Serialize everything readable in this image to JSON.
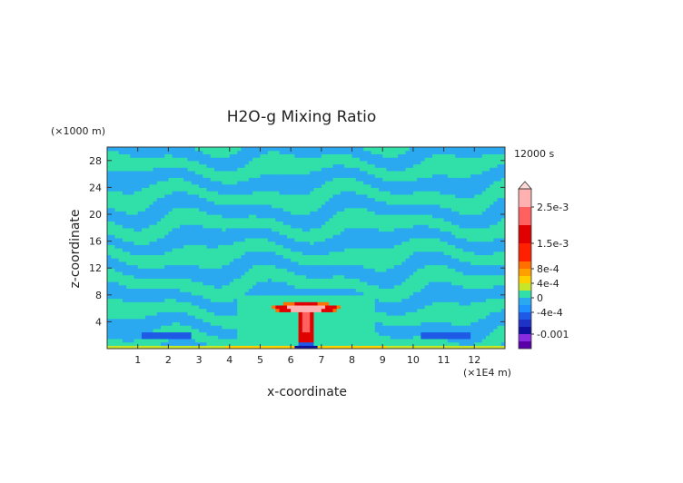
{
  "chart_data": {
    "type": "heatmap",
    "title": "H2O-g Mixing Ratio",
    "xlabel": "x-coordinate",
    "ylabel": "z-coordinate",
    "x_unit": "(×1E4 m)",
    "y_unit": "(×1000 m)",
    "time_label": "12000 s",
    "xlim": [
      0,
      13
    ],
    "ylim": [
      0,
      30
    ],
    "x_ticks": [
      1,
      2,
      3,
      4,
      5,
      6,
      7,
      8,
      9,
      10,
      11,
      12
    ],
    "y_ticks": [
      4,
      8,
      12,
      16,
      20,
      24,
      28
    ],
    "grid": false,
    "colorbar": {
      "position": "right",
      "labels": [
        "2.5e-3",
        "1.5e-3",
        "8e-4",
        "4e-4",
        "0",
        "-4e-4",
        "-0.001"
      ],
      "label_levels": [
        0.0025,
        0.0015,
        0.0008,
        0.0004,
        0.0,
        -0.0004,
        -0.001
      ],
      "levels": [
        -0.0014,
        -0.0012,
        -0.001,
        -0.0008,
        -0.0006,
        -0.0004,
        -0.0002,
        0.0,
        0.0002,
        0.0004,
        0.0006,
        0.0008,
        0.001,
        0.0015,
        0.002,
        0.0025,
        0.003
      ],
      "colors": [
        "#5a00a8",
        "#8a2be2",
        "#1010a0",
        "#1e32c8",
        "#1e5ae6",
        "#1e90ff",
        "#2aa8f0",
        "#30e0a8",
        "#c8e628",
        "#ffd000",
        "#ffa000",
        "#ff7000",
        "#ff2000",
        "#e00000",
        "#ff6060",
        "#ffb0b0"
      ],
      "extend_top": true
    },
    "features": [
      {
        "description": "background field",
        "value": 0.0
      },
      {
        "description": "alternating layers",
        "values": [
          -0.0001,
          0.0001
        ]
      },
      {
        "description": "plume cap",
        "x_range": [
          5.5,
          7.6
        ],
        "z_range": [
          5.5,
          7.0
        ],
        "value": 0.0025
      },
      {
        "description": "plume stem",
        "x_range": [
          6.1,
          6.6
        ],
        "z_range": [
          0,
          5.5
        ],
        "value": 0.0015
      },
      {
        "description": "surface layer",
        "z_range": [
          0,
          0.6
        ],
        "value": 0.0006
      },
      {
        "description": "near-surface negative bands",
        "z_range": [
          1.5,
          2.5
        ],
        "value": -0.0005
      }
    ]
  }
}
